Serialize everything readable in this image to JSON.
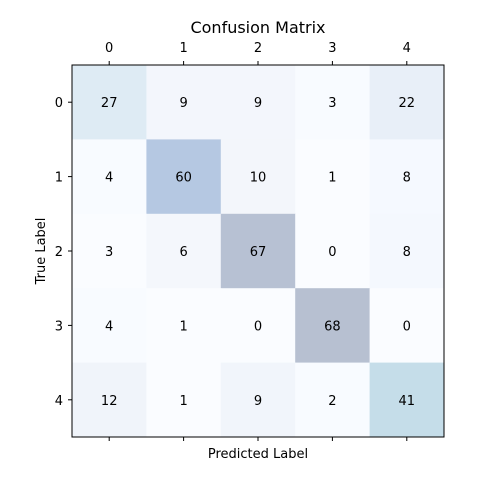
{
  "chart_data": {
    "type": "heatmap",
    "title": "Confusion Matrix",
    "xlabel": "Predicted Label",
    "ylabel": "True Label",
    "x_categories": [
      "0",
      "1",
      "2",
      "3",
      "4"
    ],
    "y_categories": [
      "0",
      "1",
      "2",
      "3",
      "4"
    ],
    "values": [
      [
        27,
        9,
        9,
        3,
        22
      ],
      [
        4,
        60,
        10,
        1,
        8
      ],
      [
        3,
        6,
        67,
        0,
        8
      ],
      [
        4,
        1,
        0,
        68,
        0
      ],
      [
        12,
        1,
        9,
        2,
        41
      ]
    ],
    "x_axis_position": "top",
    "grid": false,
    "legend": "none",
    "colors": {
      "0,0": "#deebf4",
      "0,1": "#f3f6fc",
      "0,2": "#f3f6fc",
      "0,3": "#f8fbff",
      "0,4": "#e8eff8",
      "1,0": "#f8fbff",
      "1,1": "#b5c8e2",
      "1,2": "#f3f6fb",
      "1,3": "#fafcff",
      "1,4": "#f5f9ff",
      "2,0": "#fafcff",
      "2,1": "#f4f7fc",
      "2,2": "#b7c1d3",
      "2,3": "#fafcff",
      "2,4": "#f4f8fe",
      "3,0": "#f8fbff",
      "3,1": "#fafcff",
      "3,2": "#fafcff",
      "3,3": "#b7c0d1",
      "3,4": "#fafcff",
      "4,0": "#f0f4fa",
      "4,1": "#fafcff",
      "4,2": "#f1f5fb",
      "4,3": "#f8fbff",
      "4,4": "#c5dde9"
    },
    "text_color": "#000000",
    "axis_color": "#000000"
  }
}
